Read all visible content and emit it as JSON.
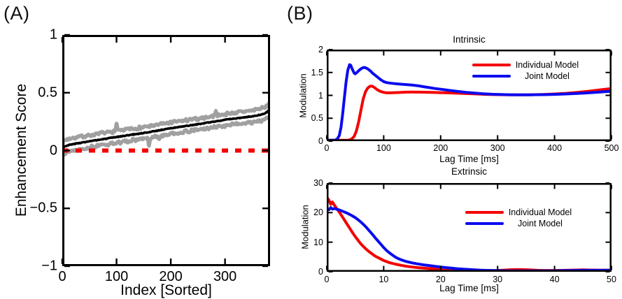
{
  "panels": {
    "a_label": "(A)",
    "b_label": "(B)"
  },
  "chart_data": [
    {
      "id": "enhancement-score",
      "panel": "A",
      "type": "line",
      "title": "",
      "xlabel": "Index [Sorted]",
      "ylabel": "Enhancement Score",
      "xlim": [
        0,
        383
      ],
      "ylim": [
        -1,
        1
      ],
      "xticks": [
        0,
        100,
        200,
        300
      ],
      "yticks": [
        -1,
        -0.5,
        0,
        0.5,
        1
      ],
      "grid": false,
      "legend": null,
      "band": {
        "step": 1,
        "noise": 0.013,
        "mean": [
          [
            0,
            0.015
          ],
          [
            4,
            0.035
          ],
          [
            12,
            0.048
          ],
          [
            25,
            0.06
          ],
          [
            40,
            0.072
          ],
          [
            60,
            0.087
          ],
          [
            80,
            0.102
          ],
          [
            100,
            0.117
          ],
          [
            125,
            0.135
          ],
          [
            150,
            0.152
          ],
          [
            175,
            0.172
          ],
          [
            200,
            0.193
          ],
          [
            225,
            0.21
          ],
          [
            250,
            0.227
          ],
          [
            275,
            0.247
          ],
          [
            300,
            0.266
          ],
          [
            320,
            0.278
          ],
          [
            340,
            0.29
          ],
          [
            355,
            0.3
          ],
          [
            365,
            0.31
          ],
          [
            372,
            0.32
          ],
          [
            377,
            0.332
          ],
          [
            381,
            0.35
          ],
          [
            383,
            0.375
          ]
        ],
        "halfwidth": [
          [
            0,
            0.055
          ],
          [
            50,
            0.052
          ],
          [
            150,
            0.05
          ],
          [
            250,
            0.048
          ],
          [
            330,
            0.05
          ],
          [
            370,
            0.052
          ],
          [
            383,
            0.058
          ]
        ],
        "upper_spikes": [
          [
            100,
            0.062
          ],
          [
            283,
            0.035
          ]
        ],
        "lower_spikes": [
          [
            160,
            -0.078
          ],
          [
            178,
            -0.035
          ]
        ]
      },
      "series": [
        {
          "name": "upper-band",
          "color": "#a0a0a0",
          "width": 5,
          "band": "upper"
        },
        {
          "name": "lower-band",
          "color": "#a0a0a0",
          "width": 5,
          "band": "lower"
        },
        {
          "name": "mean",
          "color": "#000000",
          "width": 3.5,
          "band": "center"
        },
        {
          "name": "zero-line",
          "color": "#f40000",
          "width": 6,
          "dash": [
            9,
            10
          ],
          "points": [
            [
              0,
              0
            ],
            [
              383,
              0
            ]
          ]
        }
      ]
    },
    {
      "id": "intrinsic",
      "panel": "B",
      "type": "line",
      "title": "Intrinsic",
      "xlabel": "Lag Time [ms]",
      "ylabel": "Modulation",
      "xlim": [
        0,
        500
      ],
      "ylim": [
        0,
        2
      ],
      "xticks": [
        0,
        100,
        200,
        300,
        400,
        500
      ],
      "yticks": [
        0,
        0.5,
        1,
        1.5,
        2
      ],
      "grid": false,
      "legend": {
        "position": "upper-right"
      },
      "series": [
        {
          "name": "Individual Model",
          "color": "#f40000",
          "width": 4,
          "points": [
            [
              0,
              0.02
            ],
            [
              38,
              0.02
            ],
            [
              43,
              0.04
            ],
            [
              48,
              0.1
            ],
            [
              52,
              0.22
            ],
            [
              56,
              0.42
            ],
            [
              60,
              0.67
            ],
            [
              64,
              0.92
            ],
            [
              68,
              1.08
            ],
            [
              72,
              1.16
            ],
            [
              76,
              1.2
            ],
            [
              80,
              1.2
            ],
            [
              84,
              1.17
            ],
            [
              88,
              1.13
            ],
            [
              92,
              1.1
            ],
            [
              96,
              1.08
            ],
            [
              100,
              1.065
            ],
            [
              105,
              1.055
            ],
            [
              110,
              1.055
            ],
            [
              120,
              1.06
            ],
            [
              130,
              1.065
            ],
            [
              140,
              1.07
            ],
            [
              150,
              1.072
            ],
            [
              165,
              1.07
            ],
            [
              180,
              1.067
            ],
            [
              200,
              1.06
            ],
            [
              220,
              1.052
            ],
            [
              240,
              1.042
            ],
            [
              260,
              1.032
            ],
            [
              280,
              1.022
            ],
            [
              300,
              1.015
            ],
            [
              320,
              1.01
            ],
            [
              340,
              1.01
            ],
            [
              360,
              1.014
            ],
            [
              380,
              1.02
            ],
            [
              400,
              1.03
            ],
            [
              420,
              1.045
            ],
            [
              440,
              1.065
            ],
            [
              460,
              1.09
            ],
            [
              480,
              1.12
            ],
            [
              500,
              1.15
            ]
          ]
        },
        {
          "name": "Joint Model",
          "color": "#0b0bf0",
          "width": 4,
          "points": [
            [
              0,
              0.02
            ],
            [
              14,
              0.02
            ],
            [
              18,
              0.04
            ],
            [
              22,
              0.12
            ],
            [
              25,
              0.3
            ],
            [
              28,
              0.6
            ],
            [
              31,
              0.95
            ],
            [
              34,
              1.3
            ],
            [
              37,
              1.55
            ],
            [
              40,
              1.67
            ],
            [
              42,
              1.66
            ],
            [
              45,
              1.57
            ],
            [
              48,
              1.49
            ],
            [
              50,
              1.47
            ],
            [
              53,
              1.5
            ],
            [
              57,
              1.55
            ],
            [
              61,
              1.59
            ],
            [
              65,
              1.61
            ],
            [
              69,
              1.6
            ],
            [
              73,
              1.57
            ],
            [
              77,
              1.53
            ],
            [
              81,
              1.48
            ],
            [
              85,
              1.44
            ],
            [
              90,
              1.39
            ],
            [
              95,
              1.34
            ],
            [
              100,
              1.3
            ],
            [
              105,
              1.28
            ],
            [
              110,
              1.27
            ],
            [
              120,
              1.255
            ],
            [
              130,
              1.245
            ],
            [
              140,
              1.235
            ],
            [
              150,
              1.225
            ],
            [
              160,
              1.21
            ],
            [
              170,
              1.19
            ],
            [
              180,
              1.17
            ],
            [
              190,
              1.15
            ],
            [
              200,
              1.135
            ],
            [
              215,
              1.11
            ],
            [
              230,
              1.085
            ],
            [
              245,
              1.065
            ],
            [
              260,
              1.05
            ],
            [
              275,
              1.035
            ],
            [
              290,
              1.025
            ],
            [
              305,
              1.018
            ],
            [
              320,
              1.013
            ],
            [
              340,
              1.01
            ],
            [
              360,
              1.012
            ],
            [
              380,
              1.016
            ],
            [
              400,
              1.022
            ],
            [
              420,
              1.03
            ],
            [
              440,
              1.042
            ],
            [
              460,
              1.055
            ],
            [
              480,
              1.072
            ],
            [
              500,
              1.09
            ]
          ]
        }
      ]
    },
    {
      "id": "extrinsic",
      "panel": "B",
      "type": "line",
      "title": "Extrinsic",
      "xlabel": "Lag Time [ms]",
      "ylabel": "Modulation",
      "xlim": [
        0,
        50
      ],
      "ylim": [
        0,
        30
      ],
      "xticks": [
        0,
        10,
        20,
        30,
        40,
        50
      ],
      "yticks": [
        0,
        10,
        20,
        30
      ],
      "grid": false,
      "legend": {
        "position": "middle-right"
      },
      "series": [
        {
          "name": "Individual Model",
          "color": "#f40000",
          "width": 4,
          "points": [
            [
              0,
              25.2
            ],
            [
              0.4,
              24.2
            ],
            [
              0.7,
              22.8
            ],
            [
              1,
              23.6
            ],
            [
              1.3,
              22.6
            ],
            [
              1.6,
              21.8
            ],
            [
              2,
              20.7
            ],
            [
              2.5,
              19.3
            ],
            [
              3,
              17.8
            ],
            [
              3.5,
              16.3
            ],
            [
              4,
              14.8
            ],
            [
              4.5,
              13.3
            ],
            [
              5,
              11.9
            ],
            [
              5.5,
              10.6
            ],
            [
              6,
              9.4
            ],
            [
              6.5,
              8.4
            ],
            [
              7,
              7.5
            ],
            [
              7.5,
              6.7
            ],
            [
              8,
              6
            ],
            [
              8.5,
              5.3
            ],
            [
              9,
              4.8
            ],
            [
              9.5,
              4.3
            ],
            [
              10,
              3.8
            ],
            [
              11,
              3.1
            ],
            [
              12,
              2.6
            ],
            [
              13,
              2.2
            ],
            [
              14,
              1.85
            ],
            [
              15,
              1.6
            ],
            [
              16,
              1.4
            ],
            [
              17,
              1.22
            ],
            [
              18,
              1.08
            ],
            [
              19,
              0.96
            ],
            [
              20,
              0.86
            ],
            [
              22,
              0.68
            ],
            [
              24,
              0.55
            ],
            [
              26,
              0.45
            ],
            [
              28,
              0.4
            ],
            [
              30,
              0.45
            ],
            [
              31,
              0.55
            ],
            [
              32,
              0.66
            ],
            [
              33,
              0.74
            ],
            [
              34,
              0.74
            ],
            [
              35,
              0.68
            ],
            [
              36,
              0.58
            ],
            [
              37,
              0.5
            ],
            [
              38,
              0.45
            ],
            [
              40,
              0.44
            ],
            [
              42,
              0.5
            ],
            [
              44,
              0.6
            ],
            [
              45,
              0.64
            ],
            [
              46,
              0.6
            ],
            [
              48,
              0.55
            ],
            [
              50,
              0.55
            ]
          ]
        },
        {
          "name": "Joint Model",
          "color": "#0b0bf0",
          "width": 4,
          "points": [
            [
              0,
              21.2
            ],
            [
              0.4,
              21
            ],
            [
              0.7,
              21.7
            ],
            [
              1,
              21.2
            ],
            [
              1.4,
              21.4
            ],
            [
              1.8,
              21.1
            ],
            [
              2.2,
              20.9
            ],
            [
              2.6,
              20.6
            ],
            [
              3,
              20.3
            ],
            [
              3.5,
              19.9
            ],
            [
              4,
              19.4
            ],
            [
              4.5,
              18.9
            ],
            [
              5,
              18.3
            ],
            [
              5.5,
              17.6
            ],
            [
              6,
              16.8
            ],
            [
              6.5,
              15.9
            ],
            [
              7,
              14.9
            ],
            [
              7.5,
              13.8
            ],
            [
              8,
              12.7
            ],
            [
              8.5,
              11.5
            ],
            [
              9,
              10.4
            ],
            [
              9.5,
              9.3
            ],
            [
              10,
              8.2
            ],
            [
              10.5,
              7.2
            ],
            [
              11,
              6.4
            ],
            [
              11.5,
              5.7
            ],
            [
              12,
              5
            ],
            [
              12.5,
              4.5
            ],
            [
              13,
              4.1
            ],
            [
              13.5,
              3.75
            ],
            [
              14,
              3.45
            ],
            [
              15,
              3
            ],
            [
              16,
              2.65
            ],
            [
              17,
              2.35
            ],
            [
              18,
              2.1
            ],
            [
              19,
              1.85
            ],
            [
              20,
              1.6
            ],
            [
              21,
              1.4
            ],
            [
              22,
              1.2
            ],
            [
              23,
              1.02
            ],
            [
              24,
              0.88
            ],
            [
              25,
              0.75
            ],
            [
              26,
              0.63
            ],
            [
              27,
              0.54
            ],
            [
              28,
              0.47
            ],
            [
              30,
              0.37
            ],
            [
              32,
              0.31
            ],
            [
              34,
              0.29
            ],
            [
              36,
              0.29
            ],
            [
              38,
              0.3
            ],
            [
              40,
              0.34
            ],
            [
              42,
              0.4
            ],
            [
              44,
              0.48
            ],
            [
              46,
              0.5
            ],
            [
              48,
              0.5
            ],
            [
              50,
              0.55
            ]
          ]
        }
      ]
    }
  ]
}
